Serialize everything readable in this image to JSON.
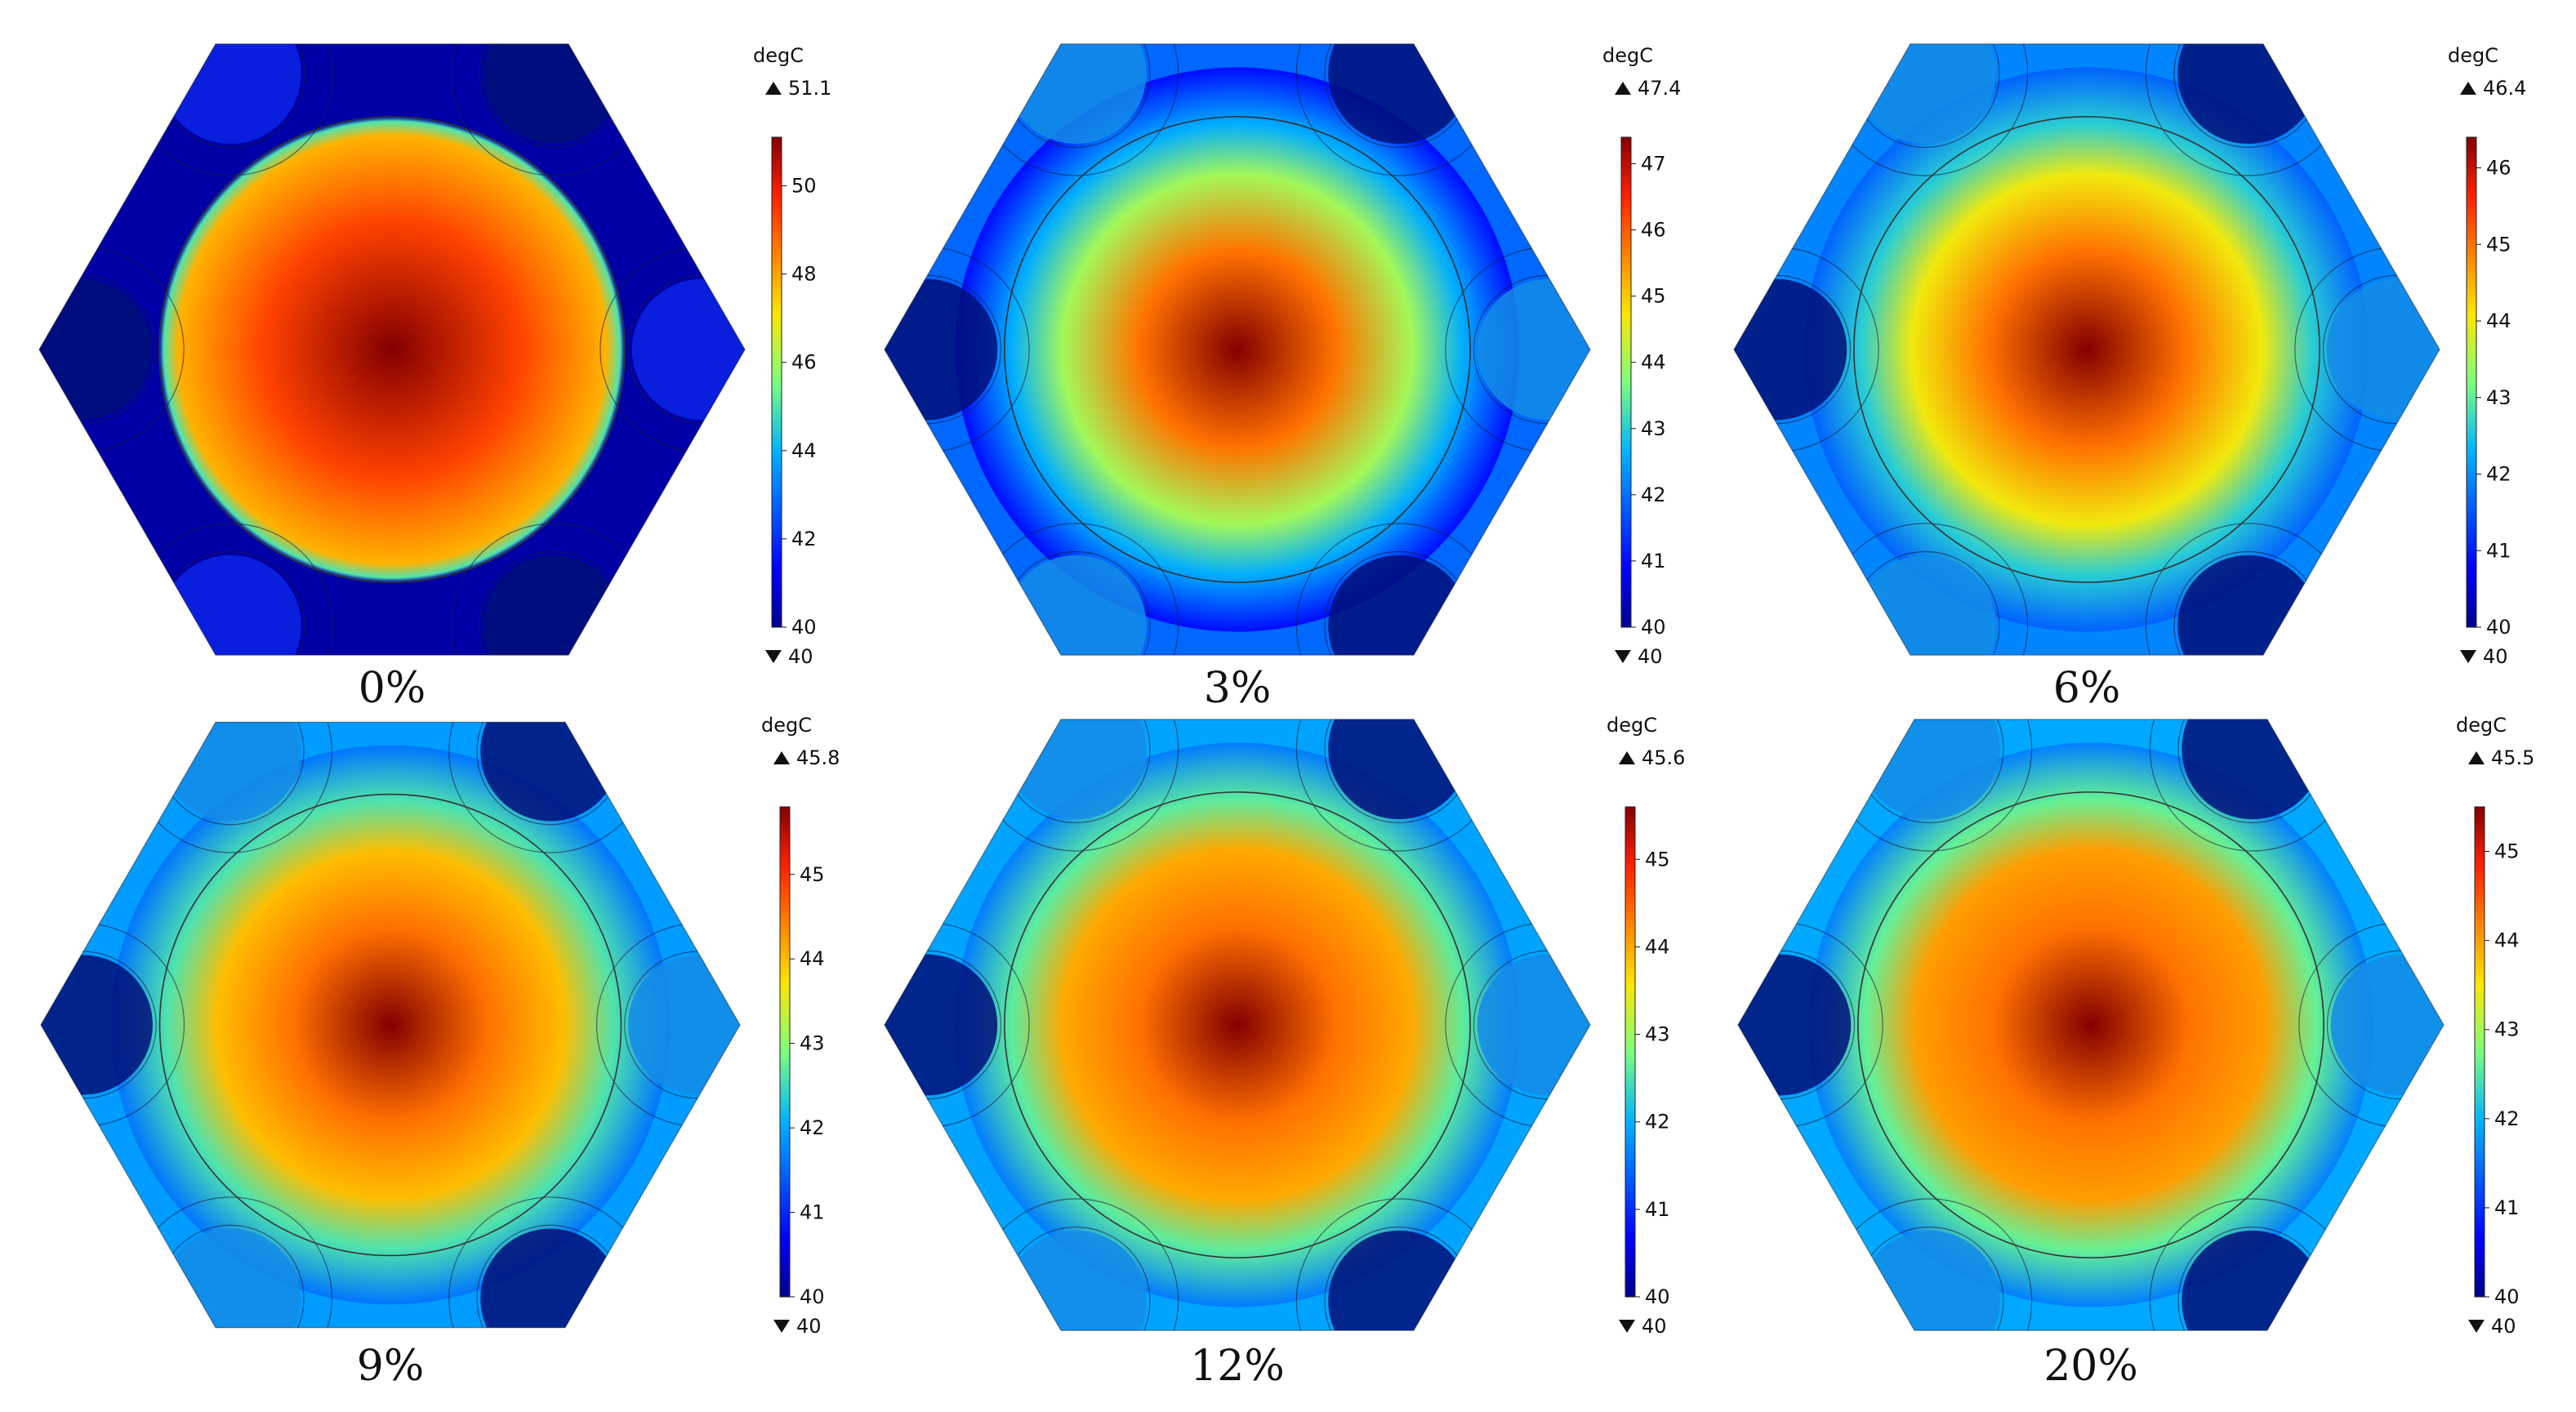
{
  "figure": {
    "panels": [
      {
        "caption": "0%",
        "unit": "degC",
        "max_label": "51.1",
        "min_label": "40",
        "ticks": [
          "50",
          "48",
          "46",
          "44",
          "42",
          "40"
        ],
        "range": [
          40,
          51.1
        ]
      },
      {
        "caption": "3%",
        "unit": "degC",
        "max_label": "47.4",
        "min_label": "40",
        "ticks": [
          "47",
          "46",
          "45",
          "44",
          "43",
          "42",
          "41",
          "40"
        ],
        "range": [
          40,
          47.4
        ]
      },
      {
        "caption": "6%",
        "unit": "degC",
        "max_label": "46.4",
        "min_label": "40",
        "ticks": [
          "46",
          "45",
          "44",
          "43",
          "42",
          "41",
          "40"
        ],
        "range": [
          40,
          46.4
        ]
      },
      {
        "caption": "9%",
        "unit": "degC",
        "max_label": "45.8",
        "min_label": "40",
        "ticks": [
          "45",
          "44",
          "43",
          "42",
          "41",
          "40"
        ],
        "range": [
          40,
          45.8
        ]
      },
      {
        "caption": "12%",
        "unit": "degC",
        "max_label": "45.6",
        "min_label": "40",
        "ticks": [
          "45",
          "44",
          "43",
          "42",
          "41",
          "40"
        ],
        "range": [
          40,
          45.6
        ]
      },
      {
        "caption": "20%",
        "unit": "degC",
        "max_label": "45.5",
        "min_label": "40",
        "ticks": [
          "45",
          "44",
          "43",
          "42",
          "41",
          "40"
        ],
        "range": [
          40,
          45.5
        ]
      }
    ]
  },
  "chart_data": [
    {
      "type": "heatmap",
      "title": "0%",
      "unit": "degC",
      "colorbar_range": [
        40,
        51.1
      ],
      "colorbar_ticks": [
        40,
        42,
        44,
        46,
        48,
        50
      ],
      "max": 51.1,
      "min": 40
    },
    {
      "type": "heatmap",
      "title": "3%",
      "unit": "degC",
      "colorbar_range": [
        40,
        47.4
      ],
      "colorbar_ticks": [
        40,
        41,
        42,
        43,
        44,
        45,
        46,
        47
      ],
      "max": 47.4,
      "min": 40
    },
    {
      "type": "heatmap",
      "title": "6%",
      "unit": "degC",
      "colorbar_range": [
        40,
        46.4
      ],
      "colorbar_ticks": [
        40,
        41,
        42,
        43,
        44,
        45,
        46
      ],
      "max": 46.4,
      "min": 40
    },
    {
      "type": "heatmap",
      "title": "9%",
      "unit": "degC",
      "colorbar_range": [
        40,
        45.8
      ],
      "colorbar_ticks": [
        40,
        41,
        42,
        43,
        44,
        45
      ],
      "max": 45.8,
      "min": 40
    },
    {
      "type": "heatmap",
      "title": "12%",
      "unit": "degC",
      "colorbar_range": [
        40,
        45.6
      ],
      "colorbar_ticks": [
        40,
        41,
        42,
        43,
        44,
        45
      ],
      "max": 45.6,
      "min": 40
    },
    {
      "type": "heatmap",
      "title": "20%",
      "unit": "degC",
      "colorbar_range": [
        40,
        45.5
      ],
      "colorbar_ticks": [
        40,
        41,
        42,
        43,
        44,
        45
      ],
      "max": 45.5,
      "min": 40
    }
  ]
}
